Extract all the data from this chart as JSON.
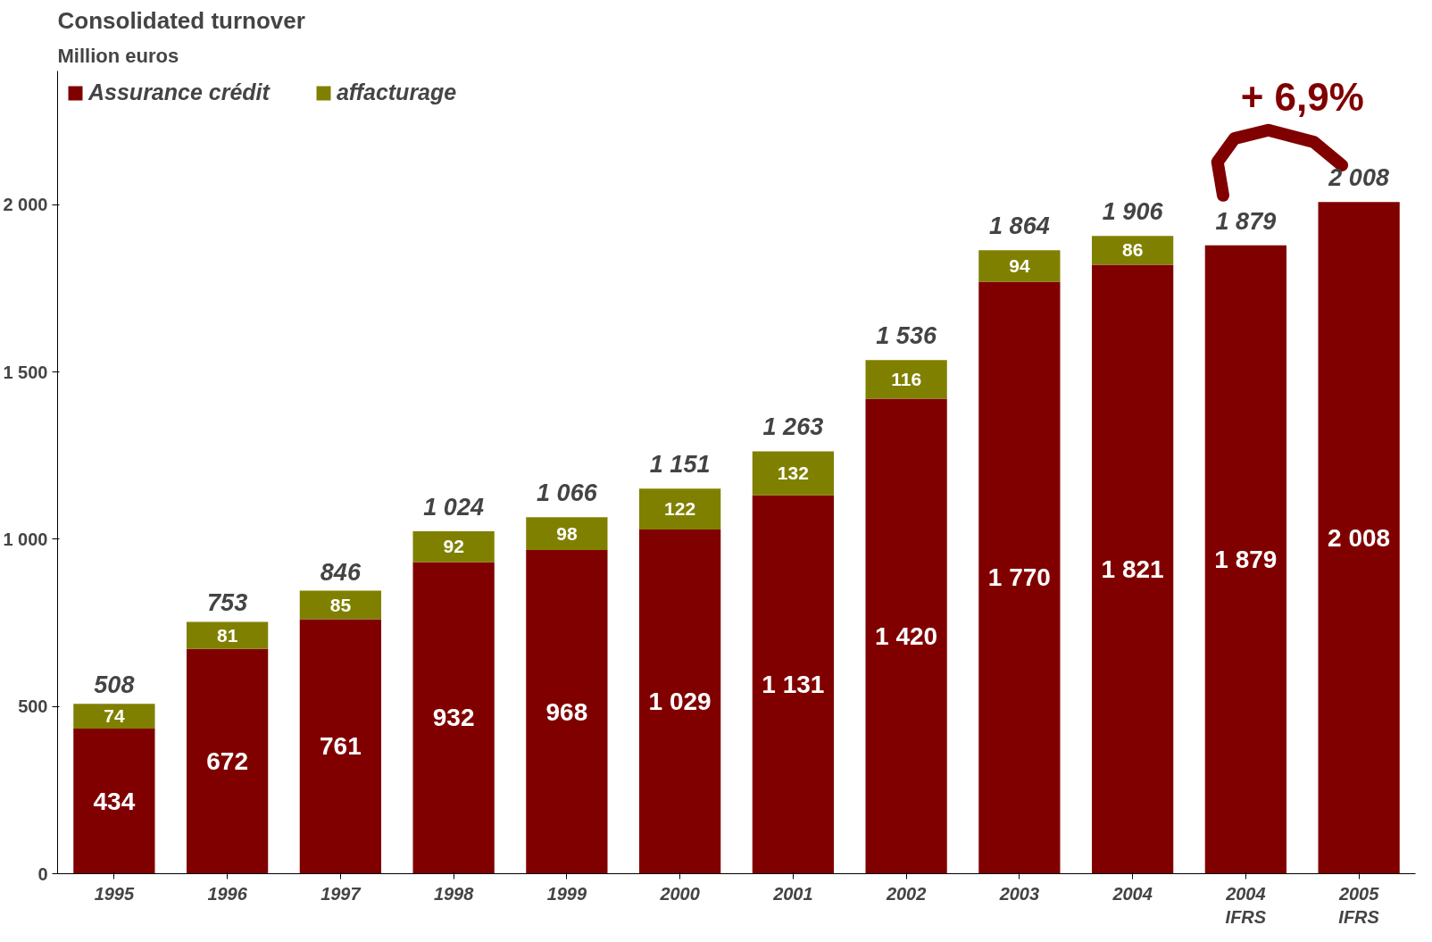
{
  "chart_data": {
    "type": "bar",
    "title": "Consolidated turnover",
    "subtitle": "Million  euros",
    "categories": [
      "1995",
      "1996",
      "1997",
      "1998",
      "1999",
      "2000",
      "2001",
      "2002",
      "2003",
      "2004",
      "2004\nIFRS",
      "2005\nIFRS"
    ],
    "stacked": true,
    "series": [
      {
        "name": "Assurance crédit",
        "color": "#800000",
        "values": [
          434,
          672,
          761,
          932,
          968,
          1029,
          1131,
          1420,
          1770,
          1821,
          1879,
          2008
        ],
        "value_labels": [
          "434",
          "672",
          "761",
          "932",
          "968",
          "1 029",
          "1 131",
          "1 420",
          "1 770",
          "1 821",
          "1 879",
          "2 008"
        ]
      },
      {
        "name": "affacturage",
        "color": "#808000",
        "values": [
          74,
          81,
          85,
          92,
          98,
          122,
          132,
          116,
          94,
          86,
          null,
          null
        ],
        "value_labels": [
          "74",
          "81",
          "85",
          "92",
          "98",
          "122",
          "132",
          "116",
          "94",
          "86",
          null,
          null
        ]
      }
    ],
    "totals": [
      "508",
      "753",
      "846",
      "1 024",
      "1 066",
      "1 151",
      "1 263",
      "1 536",
      "1 864",
      "1 906",
      "1 879",
      "2 008"
    ],
    "annotations": [
      "+ 6,9%"
    ],
    "ylim": [
      0,
      2400
    ],
    "yticks": [
      0,
      {
        "value": 500,
        "label": "500"
      },
      {
        "value": 1000,
        "label": "1 000"
      },
      {
        "value": 1500,
        "label": "1 500"
      },
      {
        "value": 2000,
        "label": "2 000"
      }
    ],
    "grid": false,
    "legend": "top left"
  }
}
